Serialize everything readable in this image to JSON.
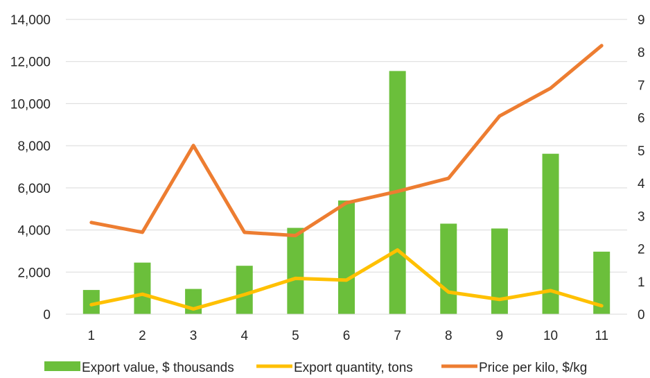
{
  "chart_data": {
    "type": "bar",
    "title": "",
    "categories": [
      "1",
      "2",
      "3",
      "4",
      "5",
      "6",
      "7",
      "8",
      "9",
      "10",
      "11"
    ],
    "series": [
      {
        "name": "Export value, $ thousands",
        "type": "bar",
        "axis": "left",
        "color": "#6bbf3b",
        "values": [
          1150,
          2450,
          1200,
          2300,
          4100,
          5400,
          11550,
          4300,
          4070,
          7620,
          2970
        ]
      },
      {
        "name": "Export quantity, tons",
        "type": "line",
        "axis": "left",
        "color": "#ffc000",
        "values": [
          450,
          950,
          250,
          930,
          1700,
          1620,
          3050,
          1050,
          700,
          1120,
          400
        ]
      },
      {
        "name": "Price per kilo, $/kg",
        "type": "line",
        "axis": "right",
        "color": "#ed7d31",
        "values": [
          2.8,
          2.5,
          5.15,
          2.5,
          2.4,
          3.4,
          3.75,
          4.15,
          6.05,
          6.9,
          8.2
        ]
      }
    ],
    "y_left": {
      "ylim": [
        0,
        14000
      ],
      "ticks": [
        0,
        2000,
        4000,
        6000,
        8000,
        10000,
        12000,
        14000
      ],
      "tick_labels": [
        "0",
        "2,000",
        "4,000",
        "6,000",
        "8,000",
        "10,000",
        "12,000",
        "14,000"
      ]
    },
    "y_right": {
      "ylim": [
        0,
        9
      ],
      "ticks": [
        0,
        1,
        2,
        3,
        4,
        5,
        6,
        7,
        8,
        9
      ],
      "tick_labels": [
        "0",
        "1",
        "2",
        "3",
        "4",
        "5",
        "6",
        "7",
        "8",
        "9"
      ]
    },
    "grid": true,
    "legend_position": "bottom"
  }
}
